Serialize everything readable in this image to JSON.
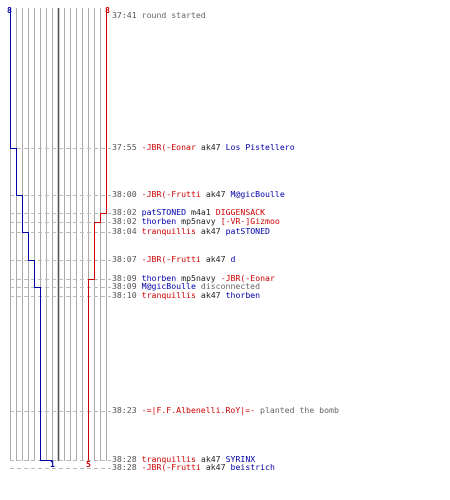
{
  "colors": {
    "red": "#cc0000",
    "blue": "#0000aa",
    "grid": "#aaaaaa",
    "dash": "#bbbbbb",
    "axis": "#555555"
  },
  "counts": {
    "ct_start": "8",
    "t_start": "8",
    "ct_end": "1",
    "t_end": "5"
  },
  "events": [
    {
      "time": "37:41",
      "parts": [
        {
          "text": "round started",
          "color": "gray"
        }
      ]
    },
    {
      "time": "37:55",
      "parts": [
        {
          "text": "-JBR(-Eonar",
          "color": "red"
        },
        {
          "text": "ak47",
          "color": "black"
        },
        {
          "text": "Los Pistellero",
          "color": "blue"
        }
      ]
    },
    {
      "time": "38:00",
      "parts": [
        {
          "text": "-JBR(-Frutti",
          "color": "red"
        },
        {
          "text": "ak47",
          "color": "black"
        },
        {
          "text": "M@gicBoulle",
          "color": "blue"
        }
      ]
    },
    {
      "time": "38:02",
      "parts": [
        {
          "text": "patSTONED",
          "color": "blue"
        },
        {
          "text": "m4a1",
          "color": "black"
        },
        {
          "text": "DIGGENSACK",
          "color": "red"
        }
      ]
    },
    {
      "time": "38:02",
      "parts": [
        {
          "text": "thorben",
          "color": "blue"
        },
        {
          "text": "mp5navy",
          "color": "black"
        },
        {
          "text": "[-VR-]Gizmoo",
          "color": "red"
        }
      ]
    },
    {
      "time": "38:04",
      "parts": [
        {
          "text": "tranquillis",
          "color": "red"
        },
        {
          "text": "ak47",
          "color": "black"
        },
        {
          "text": "patSTONED",
          "color": "blue"
        }
      ]
    },
    {
      "time": "38:07",
      "parts": [
        {
          "text": "-JBR(-Frutti",
          "color": "red"
        },
        {
          "text": "ak47",
          "color": "black"
        },
        {
          "text": "d",
          "color": "blue"
        }
      ]
    },
    {
      "time": "38:09",
      "parts": [
        {
          "text": "thorben",
          "color": "blue"
        },
        {
          "text": "mp5navy",
          "color": "black"
        },
        {
          "text": "-JBR(-Eonar",
          "color": "red"
        }
      ]
    },
    {
      "time": "38:09",
      "parts": [
        {
          "text": "M@gicBoulle",
          "color": "blue"
        },
        {
          "text": "disconnected",
          "color": "gray"
        }
      ]
    },
    {
      "time": "38:10",
      "parts": [
        {
          "text": "tranquillis",
          "color": "red"
        },
        {
          "text": "ak47",
          "color": "black"
        },
        {
          "text": "thorben",
          "color": "blue"
        }
      ]
    },
    {
      "time": "38:23",
      "parts": [
        {
          "text": "-=|F.F.Albenelli.RoY|=-",
          "color": "red"
        },
        {
          "text": "planted the bomb",
          "color": "gray"
        }
      ]
    },
    {
      "time": "38:28",
      "parts": [
        {
          "text": "tranquillis",
          "color": "red"
        },
        {
          "text": "ak47",
          "color": "black"
        },
        {
          "text": "SYRINX",
          "color": "blue"
        }
      ]
    },
    {
      "time": "38:28",
      "parts": [
        {
          "text": "-JBR(-Frutti",
          "color": "red"
        },
        {
          "text": "ak47",
          "color": "black"
        },
        {
          "text": "beistrich",
          "color": "blue"
        }
      ]
    }
  ]
}
